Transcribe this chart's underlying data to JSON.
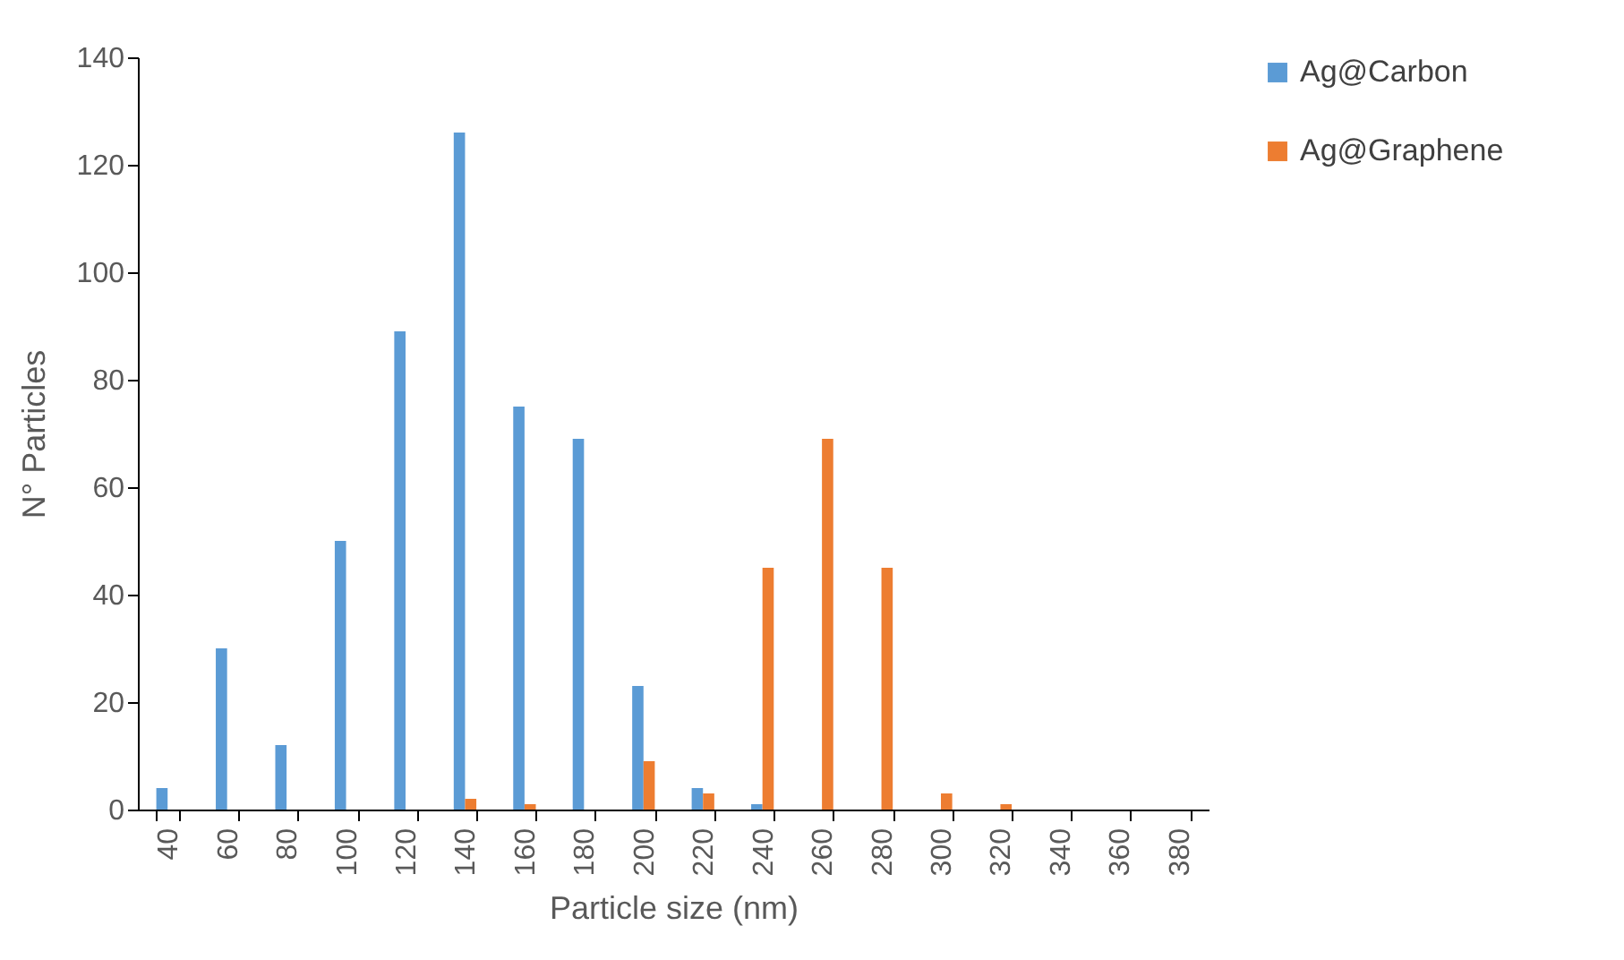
{
  "chart_data": {
    "type": "bar",
    "xlabel": "Particle size (nm)",
    "ylabel": "N° Particles",
    "categories": [
      "40",
      "60",
      "80",
      "100",
      "120",
      "140",
      "160",
      "180",
      "200",
      "220",
      "240",
      "260",
      "280",
      "300",
      "320",
      "340",
      "360",
      "380"
    ],
    "series": [
      {
        "name": "Ag@Carbon",
        "color": "#5b9bd5",
        "values": [
          4,
          30,
          12,
          50,
          89,
          126,
          75,
          69,
          23,
          4,
          1,
          0,
          0,
          0,
          0,
          0,
          0,
          0
        ]
      },
      {
        "name": "Ag@Graphene",
        "color": "#ed7d31",
        "values": [
          0,
          0,
          0,
          0,
          0,
          2,
          1,
          0,
          9,
          3,
          45,
          69,
          45,
          3,
          1,
          0,
          0,
          0
        ]
      }
    ],
    "ylim": [
      0,
      140
    ],
    "yticks": [
      0,
      20,
      40,
      60,
      80,
      100,
      120,
      140
    ],
    "grid": false,
    "legend": "right"
  }
}
